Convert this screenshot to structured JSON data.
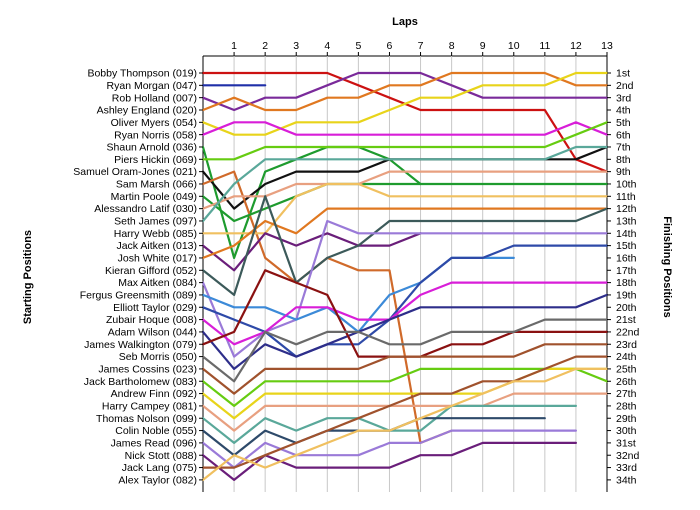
{
  "chart_data": {
    "type": "line",
    "xlabel_top": "Laps",
    "ylabel_left": "Starting Positions",
    "ylabel_right": "Finishing Positions",
    "laps": [
      1,
      2,
      3,
      4,
      5,
      6,
      7,
      8,
      9,
      10,
      11,
      12,
      13
    ],
    "starting_positions": [
      "Bobby Thompson (019)",
      "Ryan Morgan (047)",
      "Rob Holland (007)",
      "Ashley England (020)",
      "Oliver Myers (054)",
      "Ryan Norris (058)",
      "Shaun Arnold (036)",
      "Piers Hickin (069)",
      "Samuel Oram-Jones (021)",
      "Sam Marsh (066)",
      "Martin Poole (049)",
      "Alessandro Latif (030)",
      "Seth James (097)",
      "Harry Webb (085)",
      "Jack Aitken (013)",
      "Josh White (017)",
      "Kieran Gifford (052)",
      "Max Aitken (084)",
      "Fergus Greensmith (089)",
      "Elliott Taylor (029)",
      "Zubair Hoque (008)",
      "Adam Wilson (044)",
      "James Walkington (079)",
      "Seb Morris (050)",
      "James Cossins (023)",
      "Jack Bartholomew (083)",
      "Andrew Finn (092)",
      "Harry Campey (081)",
      "Thomas Nolson (099)",
      "Colin Noble (055)",
      "James Read (096)",
      "Nick Stott (088)",
      "Jack Lang (075)",
      "Alex Taylor (082)"
    ],
    "finishing_positions": [
      "1st",
      "2nd",
      "3rd",
      "4th",
      "5th",
      "6th",
      "7th",
      "8th",
      "9th",
      "10th",
      "11th",
      "12th",
      "13th",
      "14th",
      "15th",
      "16th",
      "17th",
      "18th",
      "19th",
      "20th",
      "21st",
      "22nd",
      "23rd",
      "24th",
      "25th",
      "26th",
      "27th",
      "28th",
      "29th",
      "30th",
      "31st",
      "32nd",
      "33rd",
      "34th"
    ],
    "y_range": [
      1,
      34
    ],
    "x_range": [
      0,
      13
    ],
    "grid": "vertical",
    "series": [
      {
        "start": 1,
        "positions": [
          1,
          1,
          1,
          1,
          2,
          3,
          4,
          4,
          4,
          4,
          4,
          8,
          9
        ],
        "color": "#cc1111"
      },
      {
        "start": 2,
        "positions": [
          2,
          2
        ],
        "color": "#1f2fa8"
      },
      {
        "start": 3,
        "positions": [
          4,
          3,
          3,
          2,
          1,
          1,
          1,
          2,
          3,
          3,
          3,
          3,
          3
        ],
        "color": "#7a2a9a"
      },
      {
        "start": 4,
        "positions": [
          3,
          4,
          4,
          3,
          3,
          2,
          2,
          1,
          1,
          1,
          1,
          2,
          2
        ],
        "color": "#e07820"
      },
      {
        "start": 5,
        "positions": [
          6,
          6,
          5,
          5,
          5,
          4,
          3,
          3,
          2,
          2,
          2,
          1,
          1
        ],
        "color": "#e8d41a"
      },
      {
        "start": 6,
        "positions": [
          5,
          5,
          6,
          6,
          6,
          6,
          6,
          6,
          6,
          6,
          6,
          5,
          6
        ],
        "color": "#d81ed8"
      },
      {
        "start": 7,
        "positions": [
          16,
          9,
          8,
          7,
          7,
          8,
          10
        ],
        "color": "#1e9b2e"
      },
      {
        "start": 8,
        "positions": [
          8,
          7,
          7,
          7,
          7,
          7,
          7,
          7,
          7,
          7,
          7,
          6,
          5
        ],
        "color": "#66cc11"
      },
      {
        "start": 9,
        "positions": [
          12,
          10,
          9,
          9,
          9,
          8,
          8,
          8,
          8,
          8,
          8,
          8,
          7
        ],
        "color": "#111111"
      },
      {
        "start": 10,
        "positions": [
          9,
          16,
          18,
          16,
          17,
          17,
          31,
          30
        ],
        "color": "#d06a2a"
      },
      {
        "start": 11,
        "positions": [
          13,
          12,
          11,
          10,
          10,
          10,
          10,
          10,
          10,
          10,
          10,
          10,
          10
        ],
        "color": "#1e9b2e"
      },
      {
        "start": 12,
        "positions": [
          11,
          11,
          10,
          10,
          10,
          9,
          9,
          9,
          9,
          9,
          9,
          9,
          9
        ],
        "color": "#e8a080"
      },
      {
        "start": 13,
        "positions": [
          10,
          8,
          8,
          8,
          8,
          8,
          8,
          8,
          8,
          8,
          8,
          7,
          7
        ],
        "color": "#5aa89a"
      },
      {
        "start": 14,
        "positions": [
          14,
          14,
          11,
          10,
          10,
          11,
          11,
          11,
          11,
          11,
          11,
          11,
          11
        ],
        "color": "#f0c060"
      },
      {
        "start": 15,
        "positions": [
          17,
          14,
          15,
          14,
          15,
          15,
          14
        ],
        "color": "#6a1e7a"
      },
      {
        "start": 16,
        "positions": [
          15,
          13,
          14,
          12,
          12,
          12,
          12,
          12,
          12,
          12,
          12,
          12,
          12
        ],
        "color": "#e07820"
      },
      {
        "start": 17,
        "positions": [
          19,
          11,
          18,
          16,
          15,
          13,
          13,
          13,
          13,
          13,
          13,
          13,
          12
        ],
        "color": "#3c5a5a"
      },
      {
        "start": 18,
        "positions": [
          24,
          22,
          21,
          13,
          14,
          14,
          14,
          14,
          14,
          14,
          14,
          14,
          14
        ],
        "color": "#9a7ad8"
      },
      {
        "start": 19,
        "positions": [
          20,
          20,
          21,
          20,
          22,
          19,
          18,
          16,
          16,
          16
        ],
        "color": "#3c8ad8"
      },
      {
        "start": 20,
        "positions": [
          21,
          22,
          24,
          23,
          23,
          21,
          18,
          16,
          16,
          15,
          15,
          15,
          15
        ],
        "color": "#2e4aa8"
      },
      {
        "start": 21,
        "positions": [
          23,
          22,
          20,
          20,
          21,
          21,
          19,
          18,
          18,
          18,
          18,
          18,
          18
        ],
        "color": "#d81ed8"
      },
      {
        "start": 22,
        "positions": [
          25,
          23,
          24,
          23,
          22,
          21,
          20,
          20,
          20,
          20,
          20,
          20,
          19
        ],
        "color": "#2e2e8a"
      },
      {
        "start": 23,
        "positions": [
          22,
          17,
          18,
          19,
          24,
          24,
          24,
          23,
          23,
          22,
          22,
          22,
          22
        ],
        "color": "#8a1111"
      },
      {
        "start": 24,
        "positions": [
          26,
          22,
          23,
          22,
          22,
          23,
          23,
          22,
          22,
          22,
          21,
          21,
          21
        ],
        "color": "#6a6a6a"
      },
      {
        "start": 25,
        "positions": [
          27,
          25,
          25,
          25,
          25,
          24,
          24,
          24,
          24,
          24,
          23,
          23,
          23
        ],
        "color": "#a0522d"
      },
      {
        "start": 26,
        "positions": [
          28,
          26,
          26,
          26,
          26,
          26,
          25,
          25,
          25,
          25,
          25,
          25,
          26
        ],
        "color": "#66cc11"
      },
      {
        "start": 27,
        "positions": [
          29,
          27,
          27,
          27,
          27,
          27,
          27,
          27,
          27,
          26,
          25,
          25,
          25
        ],
        "color": "#e8d41a"
      },
      {
        "start": 28,
        "positions": [
          30,
          28,
          28,
          28,
          28,
          28,
          28,
          28,
          28,
          27,
          27,
          27,
          27
        ],
        "color": "#e8a080"
      },
      {
        "start": 29,
        "positions": [
          31,
          29,
          30,
          29,
          29,
          30,
          30,
          28,
          28,
          28,
          28,
          28
        ],
        "color": "#5aa89a"
      },
      {
        "start": 30,
        "positions": [
          32,
          30,
          31,
          30,
          30,
          30,
          29,
          29,
          29,
          29,
          29
        ],
        "color": "#2e4a6a"
      },
      {
        "start": 31,
        "positions": [
          33,
          31,
          32,
          32,
          32,
          31,
          31,
          30,
          30,
          30,
          30,
          30
        ],
        "color": "#9a7ad8"
      },
      {
        "start": 32,
        "positions": [
          34,
          32,
          33,
          33,
          33,
          33,
          32,
          32,
          31,
          31,
          31,
          31
        ],
        "color": "#6a1e7a"
      },
      {
        "start": 33,
        "positions": [
          33,
          32,
          31,
          30,
          29,
          28,
          27,
          27,
          26,
          26,
          25,
          24,
          24
        ],
        "color": "#a0522d"
      },
      {
        "start": 34,
        "positions": [
          32,
          33,
          32,
          31,
          30,
          30,
          29,
          28,
          27,
          26,
          26,
          25,
          25
        ],
        "color": "#f0c060"
      }
    ]
  }
}
